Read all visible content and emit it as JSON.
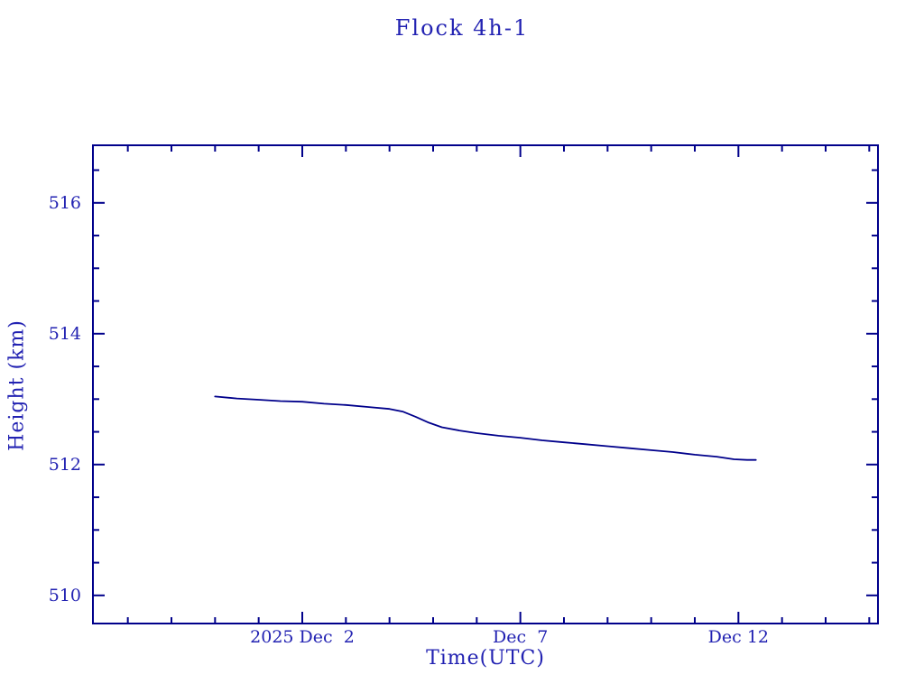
{
  "page": {
    "background": "#ffffff"
  },
  "chart_data": {
    "type": "line",
    "title": "Flock 4h-1",
    "xlabel": "Time(UTC)",
    "ylabel": "Height (km)",
    "grid": false,
    "legend": "none",
    "colors": {
      "line": "#00008b",
      "axis": "#00008b",
      "text": "#2222b2"
    },
    "x_axis": {
      "t_unit": "days since 2025 Nov 30 0h UTC",
      "range": [
        -2.8,
        15.2
      ],
      "minor_tick_step": 1,
      "major_ticks": [
        {
          "t": 2,
          "label": "2025 Dec  2"
        },
        {
          "t": 7,
          "label": "Dec  7"
        },
        {
          "t": 12,
          "label": "Dec 12"
        }
      ]
    },
    "y_axis": {
      "range": [
        509.57,
        516.88
      ],
      "minor_tick_step": 0.5,
      "major_ticks": [
        {
          "v": 510,
          "label": "510"
        },
        {
          "v": 512,
          "label": "512"
        },
        {
          "v": 514,
          "label": "514"
        },
        {
          "v": 516,
          "label": "516"
        }
      ]
    },
    "series": [
      {
        "points": [
          [
            0.0,
            513.04
          ],
          [
            0.5,
            513.01
          ],
          [
            1.0,
            512.99
          ],
          [
            1.5,
            512.97
          ],
          [
            2.0,
            512.96
          ],
          [
            2.5,
            512.93
          ],
          [
            3.0,
            512.91
          ],
          [
            3.5,
            512.88
          ],
          [
            4.0,
            512.85
          ],
          [
            4.3,
            512.81
          ],
          [
            4.6,
            512.73
          ],
          [
            4.9,
            512.64
          ],
          [
            5.2,
            512.57
          ],
          [
            5.6,
            512.52
          ],
          [
            6.0,
            512.48
          ],
          [
            6.5,
            512.44
          ],
          [
            7.0,
            512.41
          ],
          [
            7.5,
            512.37
          ],
          [
            8.0,
            512.34
          ],
          [
            8.5,
            512.31
          ],
          [
            9.0,
            512.28
          ],
          [
            9.5,
            512.25
          ],
          [
            10.0,
            512.22
          ],
          [
            10.5,
            512.19
          ],
          [
            11.0,
            512.15
          ],
          [
            11.5,
            512.12
          ],
          [
            11.9,
            512.08
          ],
          [
            12.2,
            512.07
          ],
          [
            12.4,
            512.07
          ]
        ]
      }
    ]
  }
}
